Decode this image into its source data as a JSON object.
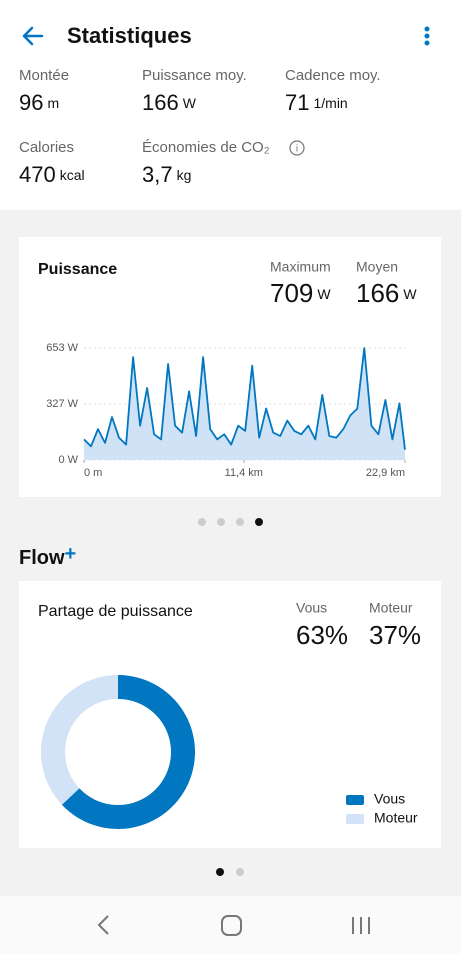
{
  "header": {
    "title": "Statistiques"
  },
  "stats": [
    {
      "label": "Montée",
      "value": "96",
      "unit": "m"
    },
    {
      "label": "Puissance moy.",
      "value": "166",
      "unit": "W"
    },
    {
      "label": "Cadence moy.",
      "value": "71",
      "unit": "1/min"
    },
    {
      "label": "Calories",
      "value": "470",
      "unit": "kcal"
    },
    {
      "label": "Économies de CO₂",
      "value": "3,7",
      "unit": "kg"
    }
  ],
  "power_card": {
    "title": "Puissance",
    "summary": [
      {
        "label": "Maximum",
        "value": "709",
        "unit": "W"
      },
      {
        "label": "Moyen",
        "value": "166",
        "unit": "W"
      }
    ],
    "chart": {
      "type": "area",
      "x": [
        0,
        0.5,
        1,
        1.5,
        2,
        2.5,
        3,
        3.5,
        4,
        4.5,
        5,
        5.5,
        6,
        6.5,
        7,
        7.5,
        8,
        8.5,
        9,
        9.5,
        10,
        10.5,
        11,
        11.5,
        12,
        12.5,
        13,
        13.5,
        14,
        14.5,
        15,
        15.5,
        16,
        16.5,
        17,
        17.5,
        18,
        18.5,
        19,
        19.5,
        20,
        20.5,
        21,
        21.5,
        22,
        22.5,
        22.9
      ],
      "series": [
        {
          "name": "Puissance",
          "color": "#0077c0",
          "fill": "#cfe2f6",
          "values": [
            120,
            80,
            180,
            100,
            250,
            130,
            90,
            600,
            200,
            420,
            150,
            120,
            560,
            200,
            160,
            400,
            140,
            600,
            180,
            120,
            150,
            90,
            200,
            170,
            550,
            130,
            300,
            160,
            140,
            230,
            170,
            150,
            200,
            120,
            380,
            140,
            130,
            180,
            260,
            300,
            653,
            200,
            150,
            350,
            120,
            330,
            60
          ]
        }
      ],
      "xlim": [
        0,
        22.9
      ],
      "ylim": [
        0,
        700
      ],
      "xticks": [
        {
          "value": 0,
          "label": "0 m"
        },
        {
          "value": 11.4,
          "label": "11,4 km"
        },
        {
          "value": 22.9,
          "label": "22,9 km"
        }
      ],
      "yticks": [
        {
          "value": 0,
          "label": "0 W"
        },
        {
          "value": 327,
          "label": "327 W"
        },
        {
          "value": 653,
          "label": "653 W"
        }
      ],
      "grid": true
    }
  },
  "flow": {
    "brand": "Flow",
    "brand_mark": "+"
  },
  "share_card": {
    "title": "Partage de puissance",
    "chart": {
      "type": "donut",
      "categories": [
        "Vous",
        "Moteur"
      ],
      "values": [
        63,
        37
      ],
      "value_labels": [
        "63%",
        "37%"
      ],
      "colors": [
        "#0077c0",
        "#d2e3f7"
      ],
      "legend": "bottom-right"
    }
  }
}
